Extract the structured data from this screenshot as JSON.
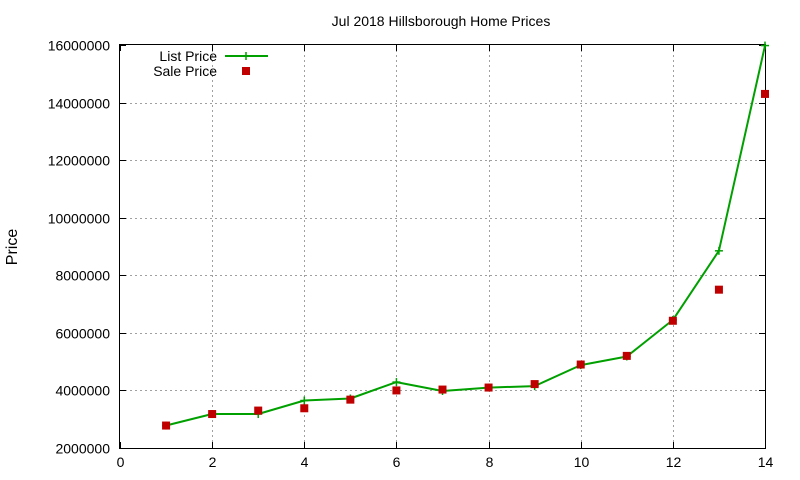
{
  "chart_data": {
    "type": "line",
    "title": "Jul 2018 Hillsborough Home Prices",
    "xlabel": "",
    "ylabel": "Price",
    "xlim": [
      0,
      14
    ],
    "ylim": [
      2000000,
      16000000
    ],
    "x_ticks": [
      "0",
      "2",
      "4",
      "6",
      "8",
      "10",
      "12",
      "14"
    ],
    "y_ticks": [
      "2000000",
      "4000000",
      "6000000",
      "8000000",
      "10000000",
      "12000000",
      "14000000",
      "16000000"
    ],
    "grid": true,
    "legend_position": "top-left",
    "series": [
      {
        "name": "List Price",
        "style": "line-with-plus-markers",
        "color": "#00a000",
        "x": [
          1,
          2,
          3,
          4,
          5,
          6,
          7,
          8,
          9,
          10,
          11,
          12,
          13,
          14
        ],
        "y": [
          2780000,
          3180000,
          3180000,
          3650000,
          3720000,
          4290000,
          3980000,
          4100000,
          4150000,
          4880000,
          5180000,
          6450000,
          8850000,
          15980000
        ]
      },
      {
        "name": "Sale Price",
        "style": "square-markers",
        "color": "#c00000",
        "x": [
          1,
          2,
          3,
          4,
          5,
          6,
          7,
          8,
          9,
          10,
          11,
          12,
          13,
          14
        ],
        "y": [
          2780000,
          3180000,
          3300000,
          3380000,
          3680000,
          4000000,
          4030000,
          4100000,
          4220000,
          4900000,
          5200000,
          6420000,
          7500000,
          14300000
        ]
      }
    ]
  }
}
